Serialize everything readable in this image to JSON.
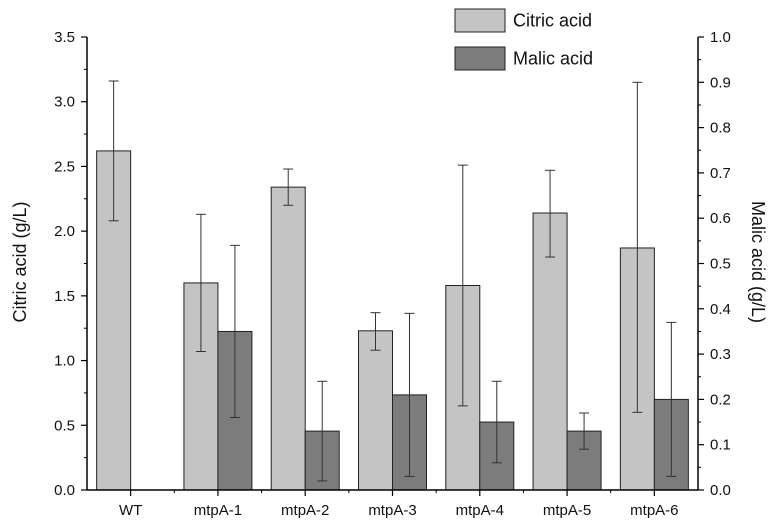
{
  "chart_data": {
    "type": "bar",
    "categories": [
      "WT",
      "mtpA-1",
      "mtpA-2",
      "mtpA-3",
      "mtpA-4",
      "mtpA-5",
      "mtpA-6"
    ],
    "series": [
      {
        "name": "Citric acid",
        "axis": "left",
        "color": "#c4c4c4",
        "values": [
          2.62,
          1.6,
          2.34,
          1.23,
          1.58,
          2.14,
          1.87
        ],
        "error_low": [
          2.08,
          1.07,
          2.2,
          1.08,
          0.65,
          1.8,
          0.6
        ],
        "error_high": [
          3.16,
          2.13,
          2.48,
          1.37,
          2.51,
          2.47,
          3.15
        ]
      },
      {
        "name": "Malic acid",
        "axis": "right",
        "color": "#7c7c7c",
        "values": [
          null,
          0.35,
          0.13,
          0.21,
          0.15,
          0.13,
          0.2
        ],
        "error_low": [
          null,
          0.16,
          0.02,
          0.03,
          0.06,
          0.09,
          0.03
        ],
        "error_high": [
          null,
          0.54,
          0.24,
          0.39,
          0.24,
          0.17,
          0.37
        ]
      }
    ],
    "ylabel": "Citric acid (g/L)",
    "ylabel_right": "Malic acid (g/L)",
    "ylim": [
      0,
      3.5
    ],
    "ylim_right": [
      0,
      1.0
    ],
    "yticks": [
      "0.0",
      "0.5",
      "1.0",
      "1.5",
      "2.0",
      "2.5",
      "3.0",
      "3.5"
    ],
    "yticks_right": [
      "0.0",
      "0.1",
      "0.2",
      "0.3",
      "0.4",
      "0.5",
      "0.6",
      "0.7",
      "0.8",
      "0.9",
      "1.0"
    ],
    "legend_position": "top-right",
    "grid": false
  }
}
